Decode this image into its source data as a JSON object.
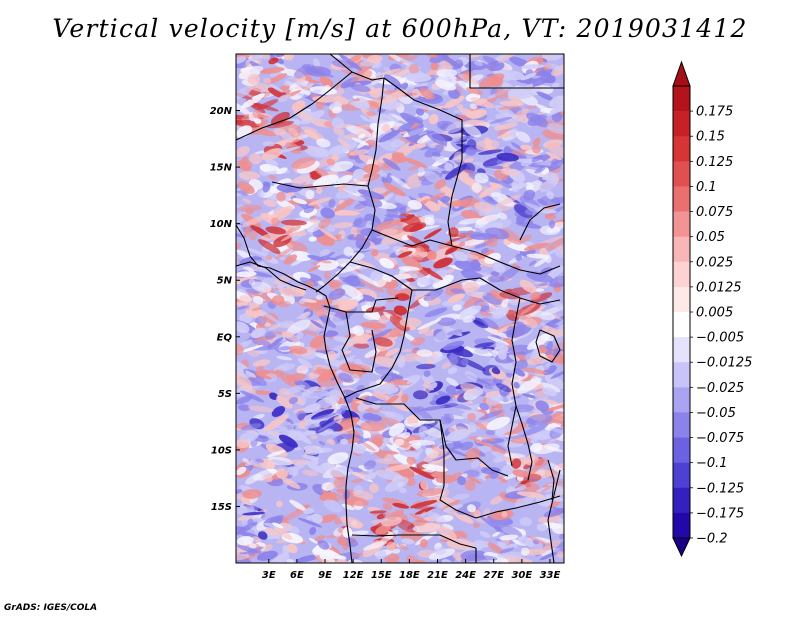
{
  "title": "Vertical velocity [m/s] at 600hPa, VT: 2019031412",
  "credit": "GrADS: IGES/COLA",
  "map": {
    "region": "Central Africa",
    "variable": "Vertical velocity",
    "units": "m/s",
    "level": "600hPa",
    "valid_time": "2019031412",
    "lon_range": [
      -0.5,
      34.5
    ],
    "lat_range": [
      -20,
      25
    ]
  },
  "lat_ticks": [
    {
      "label": "20N",
      "value": 20
    },
    {
      "label": "15N",
      "value": 15
    },
    {
      "label": "10N",
      "value": 10
    },
    {
      "label": "5N",
      "value": 5
    },
    {
      "label": "EQ",
      "value": 0
    },
    {
      "label": "5S",
      "value": -5
    },
    {
      "label": "10S",
      "value": -10
    },
    {
      "label": "15S",
      "value": -15
    }
  ],
  "lon_ticks": [
    {
      "label": "3E",
      "value": 3
    },
    {
      "label": "6E",
      "value": 6
    },
    {
      "label": "9E",
      "value": 9
    },
    {
      "label": "12E",
      "value": 12
    },
    {
      "label": "15E",
      "value": 15
    },
    {
      "label": "18E",
      "value": 18
    },
    {
      "label": "21E",
      "value": 21
    },
    {
      "label": "24E",
      "value": 24
    },
    {
      "label": "27E",
      "value": 27
    },
    {
      "label": "30E",
      "value": 30
    },
    {
      "label": "33E",
      "value": 33
    }
  ],
  "colorbar": {
    "top_arrow_color": "#a50f15",
    "bottom_arrow_color": "#1a0087",
    "bins": [
      {
        "label": "0.175",
        "color": "#b3131b"
      },
      {
        "label": "0.15",
        "color": "#c72026"
      },
      {
        "label": "0.125",
        "color": "#d63535"
      },
      {
        "label": "0.1",
        "color": "#e05050"
      },
      {
        "label": "0.075",
        "color": "#ea7070"
      },
      {
        "label": "0.05",
        "color": "#f29494"
      },
      {
        "label": "0.025",
        "color": "#f8b6b6"
      },
      {
        "label": "0.0125",
        "color": "#fcd2d2"
      },
      {
        "label": "0.005",
        "color": "#fee8e8"
      },
      {
        "label": "−0.005",
        "color": "#ffffff"
      },
      {
        "label": "−0.0125",
        "color": "#e4e2fc"
      },
      {
        "label": "−0.025",
        "color": "#c8c3f8"
      },
      {
        "label": "−0.05",
        "color": "#aaa3f2"
      },
      {
        "label": "−0.075",
        "color": "#8b82ea"
      },
      {
        "label": "−0.1",
        "color": "#6c61e0"
      },
      {
        "label": "−0.125",
        "color": "#4d40d2"
      },
      {
        "label": "−0.175",
        "color": "#3320bf"
      },
      {
        "label": "−0.2",
        "color": "#2208a8"
      }
    ]
  },
  "field_colors": {
    "base": "#b9b5f3",
    "strong_positive": "#cf2f33",
    "positive": "#ef8e8e",
    "weak_positive": "#f8c6c6",
    "neutral": "#f6f5ff",
    "weak_negative": "#d0cdf8",
    "negative": "#8b82ea",
    "strong_negative": "#3a2cc4",
    "border_color": "#000000"
  }
}
